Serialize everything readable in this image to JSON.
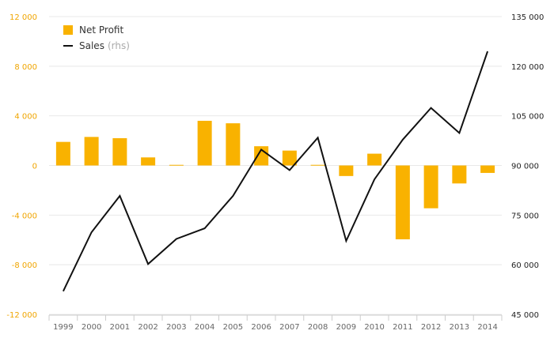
{
  "chart_data": {
    "type": "bar+line",
    "categories": [
      "1999",
      "2000",
      "2001",
      "2002",
      "2003",
      "2004",
      "2005",
      "2006",
      "2007",
      "2008",
      "2009",
      "2010",
      "2011",
      "2012",
      "2013",
      "2014"
    ],
    "series": [
      {
        "name": "Net Profit",
        "type": "bar",
        "axis": "left",
        "values": [
          1900,
          2300,
          2200,
          650,
          50,
          3600,
          3400,
          1550,
          1200,
          50,
          -850,
          950,
          -5950,
          -3450,
          -1450,
          -600
        ]
      },
      {
        "name": "Sales",
        "name_suffix": "(rhs)",
        "type": "line",
        "axis": "right",
        "values": [
          52000,
          69800,
          80800,
          60200,
          67800,
          71000,
          80800,
          94800,
          88600,
          98400,
          67200,
          85800,
          97800,
          107400,
          99800,
          124500
        ]
      }
    ],
    "left_axis": {
      "ylim": [
        -12000,
        12000
      ],
      "ticks": [
        -12000,
        -8000,
        -4000,
        0,
        4000,
        8000,
        12000
      ],
      "tick_labels": [
        "-12 000",
        "-8 000",
        "-4 000",
        "0",
        "4 000",
        "8 000",
        "12 000"
      ]
    },
    "right_axis": {
      "ylim": [
        45000,
        135000
      ],
      "ticks": [
        45000,
        60000,
        75000,
        90000,
        105000,
        120000,
        135000
      ],
      "tick_labels": [
        "45 000",
        "60 000",
        "75 000",
        "90 000",
        "105 000",
        "120 000",
        "135 000"
      ]
    },
    "grid": true,
    "legend_position": "top-left",
    "colors": {
      "bar": "#f9b200",
      "line": "#111111",
      "left_tick": "#f0a500",
      "right_tick": "#222222",
      "x_tick": "#666666",
      "grid": "#e8e8e8"
    }
  }
}
